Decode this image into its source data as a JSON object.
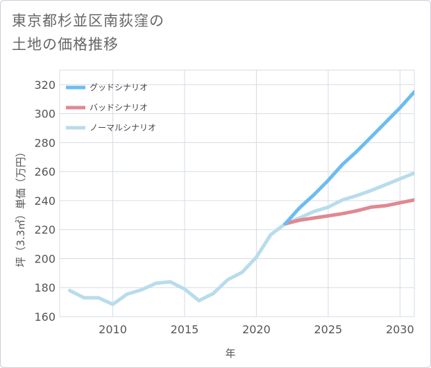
{
  "title_line1": "東京都杉並区南荻窪の",
  "title_line2": "土地の価格推移",
  "chart_data": {
    "type": "line",
    "title": "東京都杉並区南荻窪の土地の価格推移",
    "xlabel": "年",
    "ylabel": "坪（3.3㎡）単価（万円）",
    "xlim": [
      2006.3,
      2031
    ],
    "ylim": [
      160,
      330
    ],
    "x_ticks": [
      2010,
      2015,
      2020,
      2025,
      2030
    ],
    "y_ticks": [
      160,
      180,
      200,
      220,
      240,
      260,
      280,
      300,
      320
    ],
    "grid": true,
    "legend_position": "top-left",
    "series": [
      {
        "name": "グッドシナリオ",
        "color": "#6cbcf0",
        "x": [
          2022,
          2023,
          2024,
          2025,
          2026,
          2027,
          2028,
          2029,
          2030,
          2031
        ],
        "values": [
          224,
          235,
          244,
          254,
          265,
          274,
          284,
          294,
          304,
          315
        ]
      },
      {
        "name": "バッドシナリオ",
        "color": "#e08890",
        "x": [
          2022,
          2023,
          2024,
          2025,
          2026,
          2027,
          2028,
          2029,
          2030,
          2031
        ],
        "values": [
          224,
          226.5,
          228,
          229.5,
          231,
          233,
          235.5,
          236.5,
          238.5,
          240.5
        ]
      },
      {
        "name": "ノーマルシナリオ",
        "color": "#b8dceb",
        "x": [
          2007,
          2008,
          2009,
          2010,
          2011,
          2012,
          2013,
          2014,
          2015,
          2016,
          2017,
          2018,
          2019,
          2020,
          2021,
          2022,
          2023,
          2024,
          2025,
          2026,
          2027,
          2028,
          2029,
          2030,
          2031
        ],
        "values": [
          178,
          173,
          173,
          168.5,
          175.5,
          178.5,
          183,
          184,
          179,
          171,
          176,
          185.5,
          190.5,
          201,
          216.5,
          224,
          228,
          232.5,
          235.5,
          240.5,
          243.5,
          247,
          251,
          255,
          259
        ]
      }
    ]
  }
}
